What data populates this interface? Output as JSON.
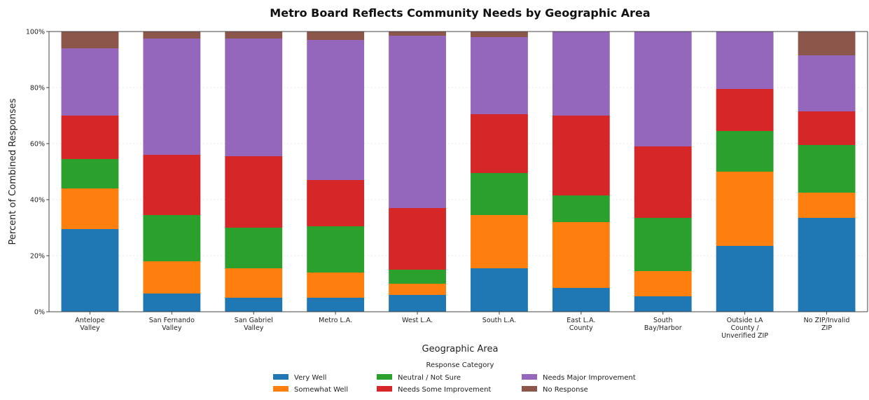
{
  "chart_data": {
    "type": "bar",
    "stacked": true,
    "title": "Metro Board Reflects Community Needs by Geographic Area",
    "xlabel": "Geographic Area",
    "ylabel": "Percent of Combined Responses",
    "ylim": [
      0,
      100
    ],
    "yticks": [
      "0%",
      "20%",
      "40%",
      "60%",
      "80%",
      "100%"
    ],
    "grid": true,
    "legend": {
      "title": "Response Category",
      "placement": "bottom-center"
    },
    "categories": [
      "Antelope Valley",
      "San Fernando Valley",
      "San Gabriel Valley",
      "Metro L.A.",
      "West L.A.",
      "South L.A.",
      "East L.A. County",
      "South Bay/Harbor",
      "Outside LA County / Unverified ZIP",
      "No ZIP/Invalid ZIP"
    ],
    "series": [
      {
        "name": "Very Well",
        "color": "#1f77b4",
        "values": [
          29.5,
          6.5,
          5,
          5,
          6,
          15.5,
          8.5,
          5.5,
          23.5,
          33.5
        ]
      },
      {
        "name": "Somewhat Well",
        "color": "#ff7f0e",
        "values": [
          14.5,
          11.5,
          10.5,
          9,
          4,
          19,
          23.5,
          9,
          26.5,
          9
        ]
      },
      {
        "name": "Neutral / Not Sure",
        "color": "#2ca02c",
        "values": [
          10.5,
          16.5,
          14.5,
          16.5,
          5,
          15,
          9.5,
          19,
          14.5,
          17
        ]
      },
      {
        "name": "Needs Some Improvement",
        "color": "#d62728",
        "values": [
          15.5,
          21.5,
          25.5,
          16.5,
          22,
          21,
          28.5,
          25.5,
          15,
          12
        ]
      },
      {
        "name": "Needs Major Improvement",
        "color": "#9467bd",
        "values": [
          24,
          41.5,
          42,
          50,
          61.5,
          27.5,
          30,
          41,
          20.5,
          20
        ]
      },
      {
        "name": "No Response",
        "color": "#8c564b",
        "values": [
          6,
          2.5,
          2.5,
          3,
          1.5,
          2,
          0,
          0,
          0,
          8.5
        ]
      }
    ]
  }
}
